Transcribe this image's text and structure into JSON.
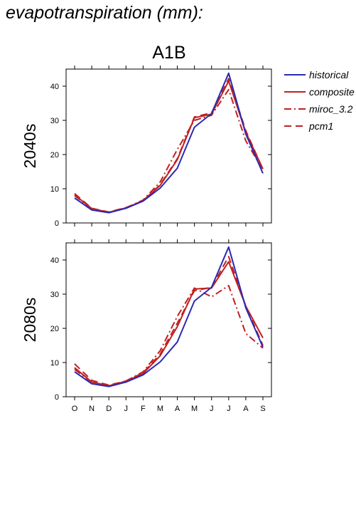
{
  "figure_title": "evapotranspiration (mm):",
  "scenario": "A1B",
  "colors": {
    "historical": "#2a2ab4",
    "future": "#c02020",
    "axis": "#000000"
  },
  "legend": [
    {
      "name": "historical",
      "style": "solid",
      "color": "#2a2ab4"
    },
    {
      "name": "composite",
      "style": "solid",
      "color": "#c02020"
    },
    {
      "name": "miroc_3.2",
      "style": "dashdot",
      "color": "#c02020"
    },
    {
      "name": "pcm1",
      "style": "dashed",
      "color": "#c02020"
    }
  ],
  "chart_data": [
    {
      "type": "line",
      "title": "A1B",
      "ylabel": "2040s",
      "categories": [
        "O",
        "N",
        "D",
        "J",
        "F",
        "M",
        "A",
        "M",
        "J",
        "J",
        "A",
        "S"
      ],
      "ylim": [
        0,
        45
      ],
      "yticks": [
        0,
        10,
        20,
        30,
        40
      ],
      "series": [
        {
          "name": "historical",
          "style": "solid",
          "color": "#2a2ab4",
          "values": [
            7.3,
            3.8,
            3.0,
            4.3,
            6.4,
            10.2,
            16.0,
            28.0,
            32.0,
            43.8,
            26.0,
            14.5
          ]
        },
        {
          "name": "composite",
          "style": "solid",
          "color": "#c02020",
          "values": [
            8.2,
            4.2,
            3.1,
            4.4,
            6.5,
            11.0,
            18.5,
            30.8,
            31.8,
            41.5,
            26.5,
            15.8
          ]
        },
        {
          "name": "miroc_3.2",
          "style": "dashdot",
          "color": "#c02020",
          "values": [
            8.0,
            4.1,
            3.1,
            4.4,
            6.7,
            12.0,
            21.5,
            30.0,
            31.5,
            39.0,
            24.0,
            15.5
          ]
        },
        {
          "name": "pcm1",
          "style": "dashed",
          "color": "#c02020",
          "values": [
            8.6,
            4.3,
            3.2,
            4.5,
            6.5,
            11.2,
            18.8,
            31.0,
            32.2,
            42.2,
            27.0,
            15.7
          ]
        }
      ]
    },
    {
      "type": "line",
      "ylabel": "2080s",
      "categories": [
        "O",
        "N",
        "D",
        "J",
        "F",
        "M",
        "A",
        "M",
        "J",
        "J",
        "A",
        "S"
      ],
      "ylim": [
        0,
        45
      ],
      "yticks": [
        0,
        10,
        20,
        30,
        40
      ],
      "series": [
        {
          "name": "historical",
          "style": "solid",
          "color": "#2a2ab4",
          "values": [
            7.3,
            3.8,
            3.0,
            4.3,
            6.4,
            10.2,
            16.0,
            28.0,
            32.0,
            43.8,
            26.0,
            14.5
          ]
        },
        {
          "name": "composite",
          "style": "solid",
          "color": "#c02020",
          "values": [
            8.5,
            4.3,
            3.2,
            4.5,
            6.8,
            12.0,
            20.5,
            31.5,
            31.8,
            39.5,
            26.5,
            17.2
          ]
        },
        {
          "name": "miroc_3.2",
          "style": "dashdot",
          "color": "#c02020",
          "values": [
            8.0,
            4.2,
            3.2,
            4.6,
            7.3,
            13.5,
            23.5,
            31.8,
            29.2,
            32.5,
            18.5,
            14.2
          ]
        },
        {
          "name": "pcm1",
          "style": "dashed",
          "color": "#c02020",
          "values": [
            9.6,
            4.8,
            3.4,
            4.6,
            7.0,
            12.5,
            21.5,
            31.0,
            32.0,
            41.0,
            26.5,
            15.0
          ]
        }
      ]
    }
  ]
}
